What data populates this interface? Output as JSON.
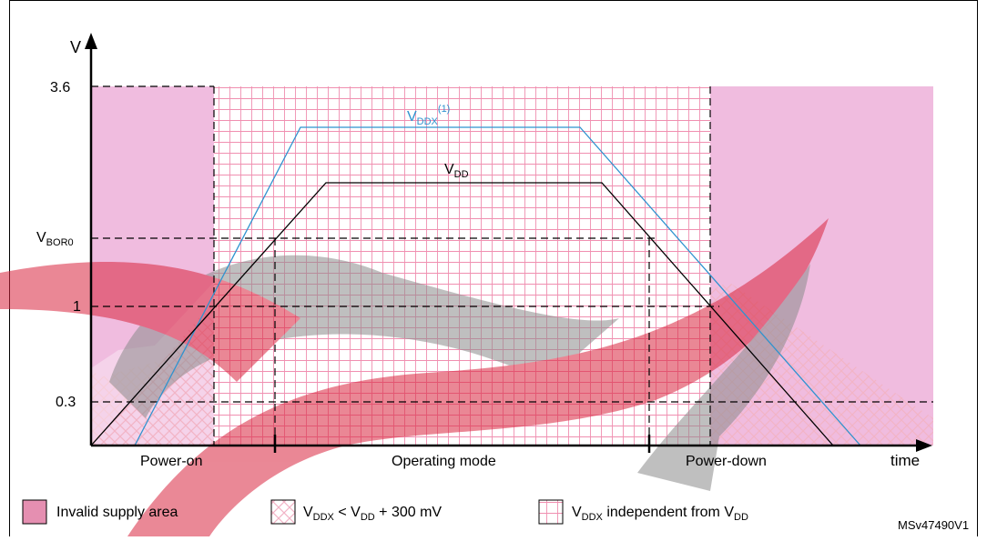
{
  "colors": {
    "invalid": "#f0bcdf",
    "invalid_legend": "#e58fb1",
    "hatch": "#f2b4c6",
    "grid": "#f08fb0",
    "vdd": "#000000",
    "vddx": "#2f93cf",
    "frame": "#000000",
    "watermark_red": "#d9263f",
    "watermark_gray": "#8c8c8c"
  },
  "axes": {
    "y_label": "V",
    "x_label": "time",
    "y_ticks": {
      "v36": "3.6",
      "vbor_main": "V",
      "vbor_sub": "BOR0",
      "v1": "1",
      "v03": "0.3"
    }
  },
  "curves": {
    "vddx": {
      "main": "V",
      "sub": "DDX",
      "sup": "(1)"
    },
    "vdd": {
      "main": "V",
      "sub": "DD"
    }
  },
  "phases": {
    "power_on": "Power-on",
    "operating": "Operating mode",
    "power_down": "Power-down"
  },
  "legend": {
    "invalid": "Invalid supply area",
    "hatch": {
      "v1": "V",
      "s1": "DDX",
      "mid": " < V",
      "s2": "DD",
      "tail": " + 300 mV"
    },
    "grid": {
      "v1": "V",
      "s1": "DDX",
      "mid": " independent from V",
      "s2": "DD"
    }
  },
  "ref": "MSv47490V1",
  "icons": {
    "y_arrow": "arrow-up-icon",
    "x_arrow": "arrow-right-icon"
  }
}
